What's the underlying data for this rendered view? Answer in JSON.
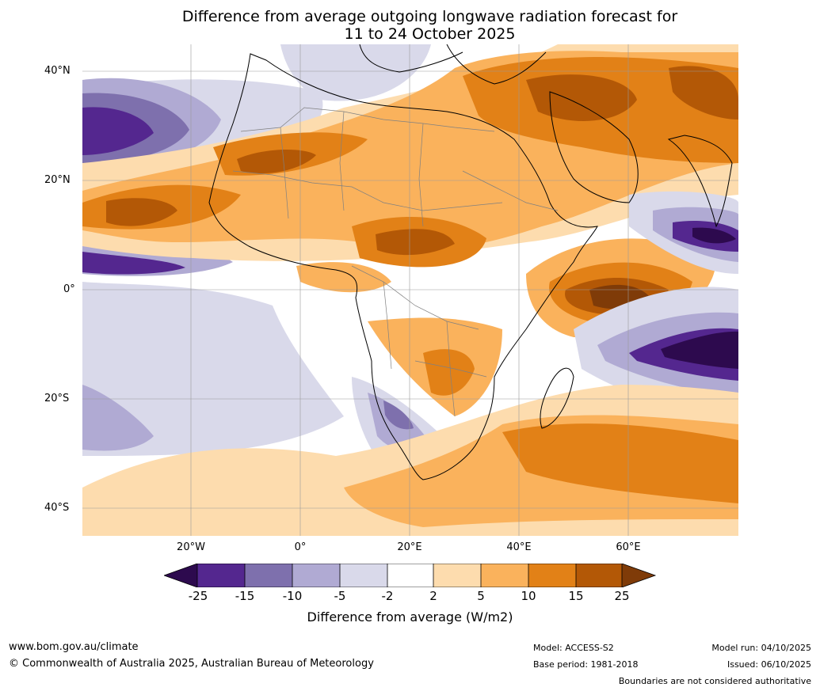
{
  "title": {
    "line1": "Difference from average outgoing longwave radiation forecast for",
    "line2": "11 to 24 October 2025"
  },
  "map": {
    "region": "Africa and Indian Ocean",
    "lat_labels": [
      "40°N",
      "20°N",
      "0°",
      "20°S",
      "40°S"
    ],
    "lon_labels": [
      "20°W",
      "0°",
      "20°E",
      "40°E",
      "60°E"
    ]
  },
  "legend": {
    "title": "Difference from average (W/m2)",
    "labels": [
      "-25",
      "-15",
      "-10",
      "-5",
      "-2",
      "2",
      "5",
      "10",
      "15",
      "25"
    ],
    "colors": [
      "#2d0a4e",
      "#54278f",
      "#7e70ad",
      "#b0aad3",
      "#d9d9ea",
      "#ffffff",
      "#fddcae",
      "#fab25c",
      "#e28117",
      "#b35806",
      "#7f3b08"
    ]
  },
  "footer": {
    "url": "www.bom.gov.au/climate",
    "copyright": "© Commonwealth of Australia 2025, Australian Bureau of Meteorology",
    "model": "Model: ACCESS-S2",
    "base_period": "Base period: 1981-2018",
    "model_run": "Model run: 04/10/2025",
    "issued": "Issued: 06/10/2025",
    "disclaimer": "Boundaries are not considered authoritative"
  }
}
